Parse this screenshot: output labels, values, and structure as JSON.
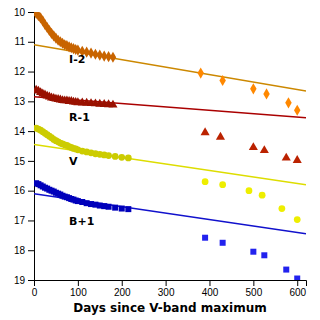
{
  "chart_data": {
    "type": "scatter",
    "xlabel": "Days since V-band maximum",
    "xlim": [
      0,
      620
    ],
    "ylim": [
      19,
      10
    ],
    "xticks": [
      0,
      100,
      200,
      300,
      400,
      500,
      600
    ],
    "yticks": [
      10,
      11,
      12,
      13,
      14,
      15,
      16,
      17,
      18,
      19
    ],
    "annotations": [
      {
        "text": "I-2",
        "x": 80,
        "y": 11.7
      },
      {
        "text": "R-1",
        "x": 80,
        "y": 13.65
      },
      {
        "text": "V",
        "x": 80,
        "y": 15.15
      },
      {
        "text": "B+1",
        "x": 80,
        "y": 17.15
      }
    ],
    "series": [
      {
        "type": "scatter",
        "color": "#c86400",
        "marker": "diamond",
        "x": [
          5,
          10,
          15,
          20,
          25,
          30,
          35,
          40,
          45,
          50,
          55,
          60,
          65,
          70,
          75,
          80,
          85,
          90,
          95,
          100,
          110,
          120,
          130,
          140,
          150,
          160,
          170,
          180
        ],
        "values": [
          10.05,
          10.12,
          10.2,
          10.3,
          10.42,
          10.52,
          10.62,
          10.72,
          10.8,
          10.88,
          10.95,
          11.0,
          11.05,
          11.1,
          11.13,
          11.17,
          11.2,
          11.23,
          11.26,
          11.28,
          11.32,
          11.35,
          11.38,
          11.42,
          11.45,
          11.48,
          11.5,
          11.52
        ]
      },
      {
        "type": "scatter",
        "color": "#ff8800",
        "marker": "diamond",
        "x": [
          380,
          430,
          500,
          530,
          580,
          600
        ],
        "values": [
          12.05,
          12.3,
          12.58,
          12.75,
          13.05,
          13.3
        ]
      },
      {
        "type": "line",
        "color": "#cc8800",
        "x": [
          0,
          620
        ],
        "values": [
          11.1,
          12.65
        ]
      },
      {
        "type": "scatter",
        "color": "#991100",
        "marker": "triangle",
        "x": [
          5,
          10,
          15,
          20,
          25,
          30,
          35,
          40,
          45,
          50,
          55,
          60,
          65,
          70,
          75,
          80,
          85,
          90,
          95,
          100,
          110,
          120,
          130,
          140,
          150,
          160,
          170,
          180
        ],
        "values": [
          12.62,
          12.65,
          12.7,
          12.75,
          12.78,
          12.82,
          12.85,
          12.88,
          12.9,
          12.92,
          12.93,
          12.95,
          12.97,
          12.98,
          12.98,
          13.0,
          13.0,
          13.02,
          13.03,
          13.04,
          13.05,
          13.06,
          13.07,
          13.08,
          13.09,
          13.1,
          13.11,
          13.12
        ]
      },
      {
        "type": "scatter",
        "color": "#bb2200",
        "marker": "triangle",
        "x": [
          390,
          425,
          500,
          525,
          575,
          600
        ],
        "values": [
          14.05,
          14.2,
          14.55,
          14.65,
          14.9,
          14.98
        ]
      },
      {
        "type": "line",
        "color": "#aa0000",
        "x": [
          0,
          620
        ],
        "values": [
          12.85,
          13.55
        ]
      },
      {
        "type": "scatter",
        "color": "#cccc00",
        "marker": "circle",
        "x": [
          5,
          10,
          15,
          20,
          25,
          30,
          35,
          40,
          45,
          50,
          55,
          60,
          65,
          70,
          75,
          80,
          85,
          90,
          95,
          100,
          110,
          120,
          130,
          140,
          150,
          160,
          170,
          185,
          200,
          215
        ],
        "values": [
          13.9,
          13.93,
          13.97,
          14.02,
          14.07,
          14.12,
          14.17,
          14.22,
          14.28,
          14.32,
          14.36,
          14.4,
          14.43,
          14.46,
          14.48,
          14.52,
          14.55,
          14.58,
          14.6,
          14.63,
          14.67,
          14.7,
          14.73,
          14.76,
          14.78,
          14.8,
          14.82,
          14.85,
          14.88,
          14.9
        ]
      },
      {
        "type": "scatter",
        "color": "#eeee00",
        "marker": "circle",
        "x": [
          390,
          430,
          490,
          520,
          565,
          600
        ],
        "values": [
          15.7,
          15.8,
          16.0,
          16.15,
          16.6,
          16.97
        ]
      },
      {
        "type": "line",
        "color": "#dddd00",
        "x": [
          0,
          620
        ],
        "values": [
          14.45,
          15.8
        ]
      },
      {
        "type": "scatter",
        "color": "#0000bb",
        "marker": "square",
        "x": [
          5,
          10,
          15,
          20,
          25,
          30,
          35,
          40,
          45,
          50,
          55,
          60,
          65,
          70,
          75,
          80,
          85,
          90,
          95,
          100,
          110,
          120,
          130,
          140,
          150,
          160,
          170,
          185,
          200,
          215
        ],
        "values": [
          15.75,
          15.78,
          15.82,
          15.86,
          15.9,
          15.93,
          15.97,
          16.0,
          16.03,
          16.07,
          16.1,
          16.13,
          16.17,
          16.2,
          16.22,
          16.25,
          16.28,
          16.3,
          16.33,
          16.35,
          16.38,
          16.42,
          16.45,
          16.47,
          16.5,
          16.52,
          16.54,
          16.57,
          16.6,
          16.62
        ]
      },
      {
        "type": "scatter",
        "color": "#2222ee",
        "marker": "square",
        "x": [
          390,
          430,
          500,
          525,
          575,
          600
        ],
        "values": [
          17.58,
          17.75,
          18.05,
          18.17,
          18.65,
          18.95
        ]
      },
      {
        "type": "line",
        "color": "#1111cc",
        "x": [
          0,
          620
        ],
        "values": [
          16.1,
          17.45
        ]
      }
    ]
  }
}
